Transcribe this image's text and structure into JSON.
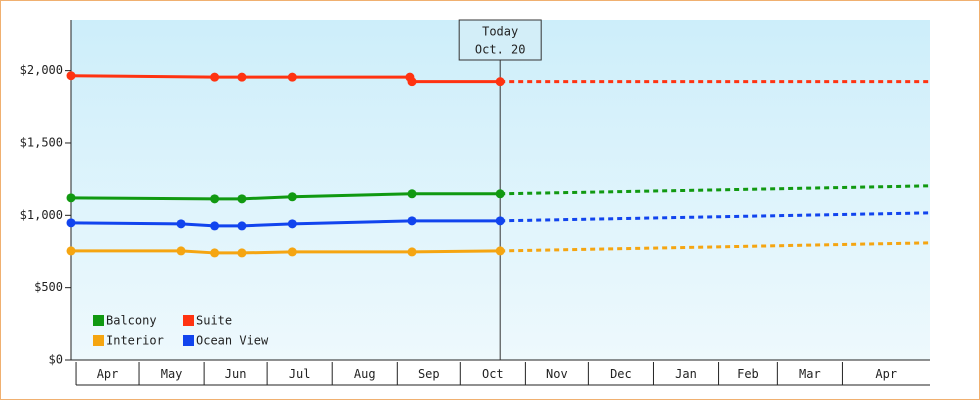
{
  "chart_data": {
    "type": "line",
    "ylim": [
      0,
      2350
    ],
    "yticks": [
      {
        "value": 0,
        "label": "$0"
      },
      {
        "value": 500,
        "label": "$500"
      },
      {
        "value": 1000,
        "label": "$1,000"
      },
      {
        "value": 1500,
        "label": "$1,500"
      },
      {
        "value": 2000,
        "label": "$2,000"
      }
    ],
    "xlim": [
      -2.4,
      406.7
    ],
    "xticks": [
      {
        "value": 0,
        "label": "Apr"
      },
      {
        "value": 30,
        "label": "May"
      },
      {
        "value": 61,
        "label": "Jun"
      },
      {
        "value": 91,
        "label": "Jul"
      },
      {
        "value": 122,
        "label": "Aug"
      },
      {
        "value": 153,
        "label": "Sep"
      },
      {
        "value": 183,
        "label": "Oct"
      },
      {
        "value": 214,
        "label": "Nov"
      },
      {
        "value": 244,
        "label": "Dec"
      },
      {
        "value": 275,
        "label": "Jan"
      },
      {
        "value": 306,
        "label": "Feb"
      },
      {
        "value": 334,
        "label": "Mar"
      },
      {
        "value": 365,
        "label": "Apr"
      }
    ],
    "annotation": {
      "x": 202,
      "lines": [
        "Today",
        "Oct. 20"
      ]
    },
    "series": [
      {
        "name": "Balcony",
        "color": "#119911",
        "x": [
          -2.4,
          66,
          79,
          103,
          160,
          202
        ],
        "values": [
          1121,
          1114,
          1114,
          1128,
          1149,
          1149
        ],
        "forecast": {
          "x": [
            202,
            306,
            406.7
          ],
          "values": [
            1149,
            1176,
            1204
          ]
        }
      },
      {
        "name": "Suite",
        "color": "#ff3311",
        "x": [
          -2.4,
          66,
          79,
          103,
          159,
          160,
          202
        ],
        "values": [
          1965,
          1955,
          1955,
          1955,
          1955,
          1924,
          1924
        ],
        "forecast": {
          "x": [
            202,
            306,
            406.7
          ],
          "values": [
            1924,
            1924,
            1924
          ]
        }
      },
      {
        "name": "Interior",
        "color": "#f5a511",
        "x": [
          -2.4,
          50,
          66,
          79,
          103,
          160,
          202
        ],
        "values": [
          754,
          754,
          740,
          740,
          747,
          747,
          754
        ],
        "forecast": {
          "x": [
            202,
            306,
            406.7
          ],
          "values": [
            754,
            782,
            810
          ]
        }
      },
      {
        "name": "Ocean View",
        "color": "#1144ee",
        "x": [
          -2.4,
          50,
          66,
          79,
          103,
          160,
          202
        ],
        "values": [
          948,
          941,
          927,
          927,
          941,
          962,
          962
        ],
        "forecast": {
          "x": [
            202,
            306,
            406.7
          ],
          "values": [
            962,
            990,
            1017
          ]
        }
      }
    ]
  }
}
